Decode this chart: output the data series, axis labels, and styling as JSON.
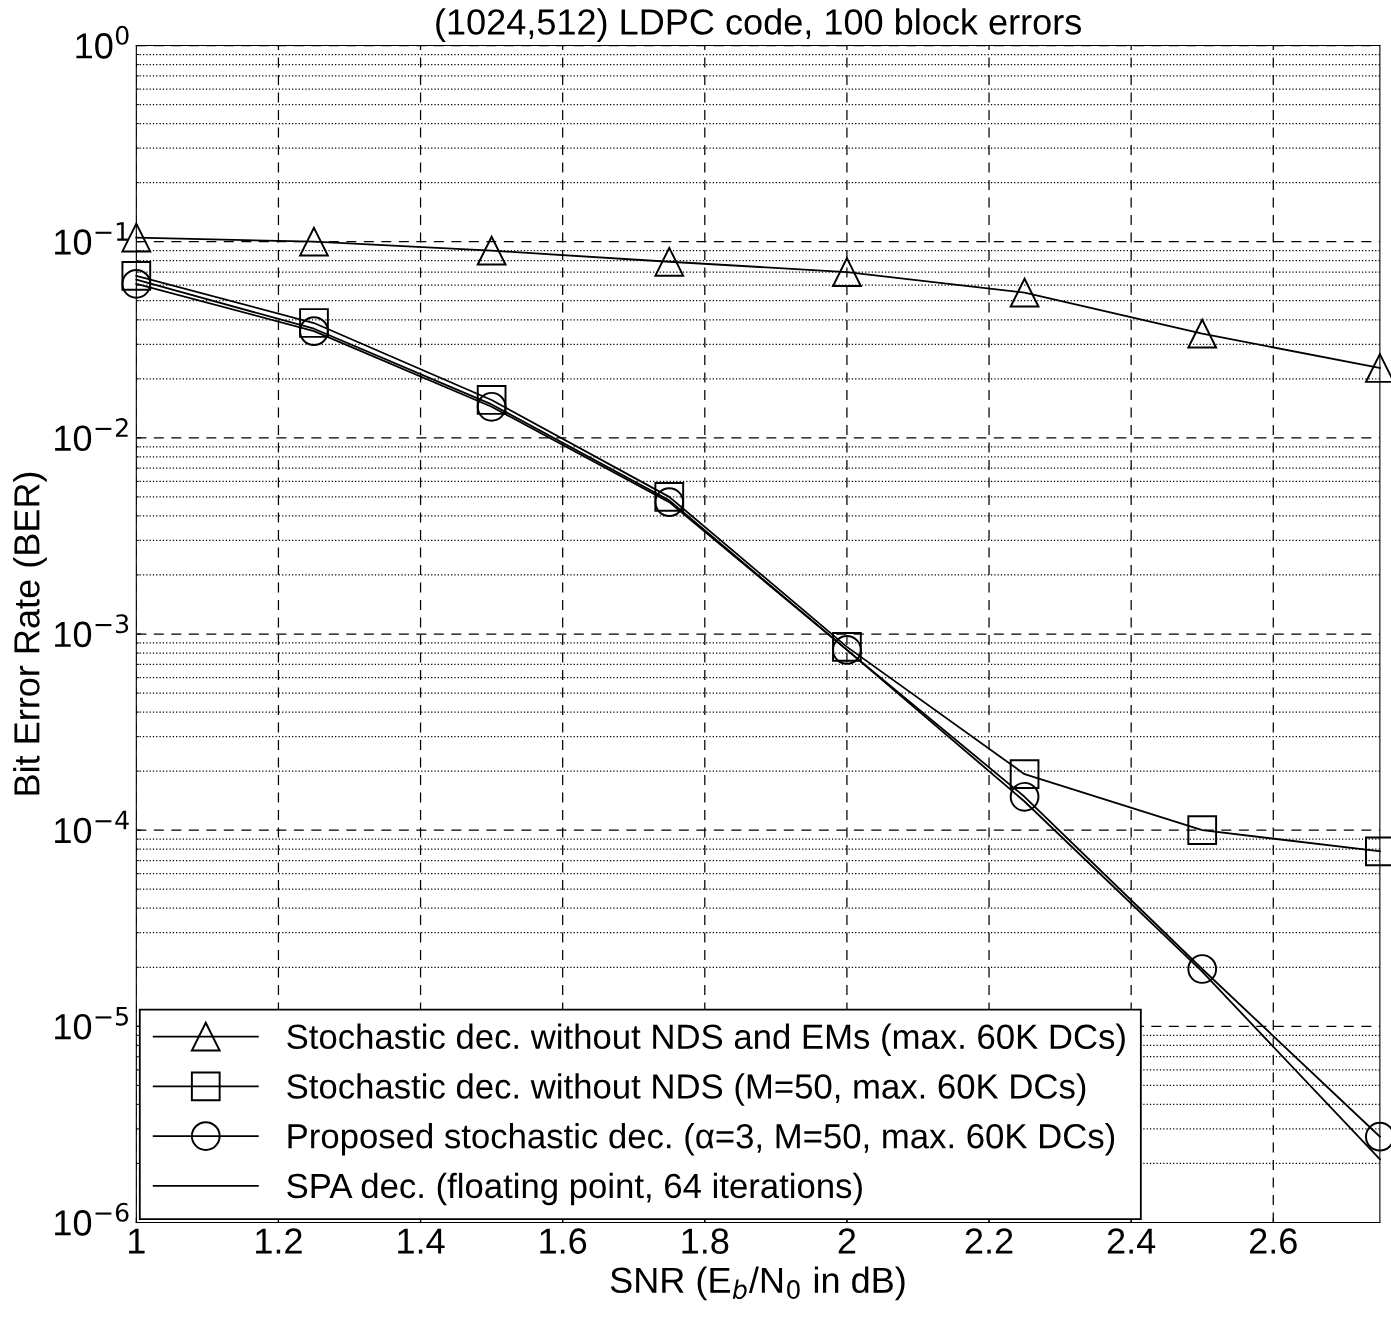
{
  "chart_data": {
    "type": "line",
    "title": "(1024,512) LDPC code, 100 block errors",
    "xlabel": "SNR (E$_{b}$/N$_{0}$ in dB)",
    "ylabel": "Bit Error Rate (BER)",
    "x": [
      1,
      1.25,
      1.5,
      1.75,
      2,
      2.25,
      2.5,
      2.75
    ],
    "series": [
      {
        "name": "Stochastic dec. without NDS and EMs (max. 60K DCs)",
        "color": "#000000",
        "marker": "triangle",
        "values": [
          0.105,
          0.1,
          0.09,
          0.079,
          0.07,
          0.055,
          0.034,
          0.0227
        ]
      },
      {
        "name": "Stochastic dec. without NDS (M=50, max. 60K DCs)",
        "color": "#000000",
        "marker": "square",
        "values": [
          0.067,
          0.0385,
          0.0156,
          0.005,
          0.00086,
          0.000193,
          0.0001,
          7.8e-05
        ]
      },
      {
        "name": "Proposed stochastic dec. (α=3, M=50, max. 60K DCs)",
        "color": "#000000",
        "marker": "circle",
        "values": [
          0.061,
          0.035,
          0.0144,
          0.0047,
          0.00083,
          0.000148,
          1.96e-05,
          2.74e-06
        ]
      },
      {
        "name": "SPA dec. (floating point, 64 iterations)",
        "color": "#000000",
        "marker": "none",
        "values": [
          0.064,
          0.036,
          0.0148,
          0.0048,
          0.00083,
          0.00014,
          1.9e-05,
          2.1e-06
        ]
      }
    ],
    "log": "y",
    "xlim": [
      1,
      2.75
    ],
    "xticks": [
      1,
      1.2,
      1.4,
      1.6,
      1.8,
      2,
      2.2,
      2.4,
      2.6
    ],
    "ylim": [
      1e-06,
      1
    ],
    "yticks": [
      {
        "value": 1e-06,
        "label": "10$^{−6}$"
      },
      {
        "value": 1e-05,
        "label": "10$^{−5}$"
      },
      {
        "value": 0.0001,
        "label": "10$^{−4}$"
      },
      {
        "value": 0.001,
        "label": "10$^{−3}$"
      },
      {
        "value": 0.01,
        "label": "10$^{−2}$"
      },
      {
        "value": 0.1,
        "label": "10$^{−1}$"
      },
      {
        "value": 1,
        "label": "10$^{0}$"
      }
    ],
    "grid": true,
    "legend": "bottom left",
    "line_style": "solid"
  }
}
